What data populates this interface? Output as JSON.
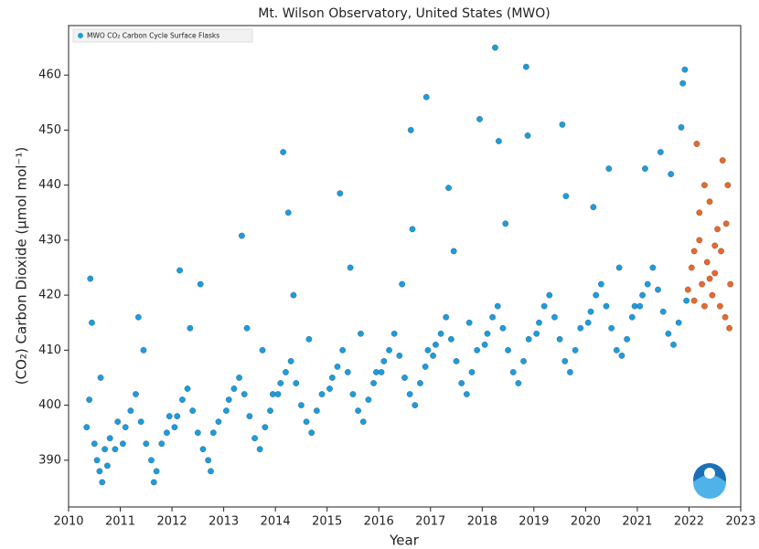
{
  "chart_data": {
    "type": "scatter",
    "title": "Mt. Wilson Observatory, United States (MWO)",
    "x_label": "Year",
    "y_label": "(CO₂) Carbon Dioxide (μmol mol⁻¹)",
    "xlim": [
      2010,
      2023
    ],
    "ylim": [
      381.5,
      469
    ],
    "xticks": [
      2010,
      2011,
      2012,
      2013,
      2014,
      2015,
      2016,
      2017,
      2018,
      2019,
      2020,
      2021,
      2022,
      2023
    ],
    "yticks": [
      390,
      400,
      410,
      420,
      430,
      440,
      450,
      460
    ],
    "legend": "upper left",
    "series": [
      {
        "name": "MWO CO₂ Carbon Cycle Surface Flasks",
        "color": "#1a9de0",
        "x": [
          2010.35,
          2010.4,
          2010.42,
          2010.45,
          2010.5,
          2010.55,
          2010.6,
          2010.65,
          2010.7,
          2010.75,
          2010.8,
          2010.9,
          2010.95,
          2010.62,
          2011.05,
          2011.1,
          2011.2,
          2011.3,
          2011.35,
          2011.4,
          2011.5,
          2011.6,
          2011.65,
          2011.7,
          2011.8,
          2011.9,
          2011.95,
          2011.45,
          2012.05,
          2012.1,
          2012.15,
          2012.2,
          2012.3,
          2012.35,
          2012.4,
          2012.5,
          2012.6,
          2012.7,
          2012.75,
          2012.8,
          2012.9,
          2012.55,
          2013.05,
          2013.1,
          2013.2,
          2013.3,
          2013.35,
          2013.4,
          2013.5,
          2013.6,
          2013.7,
          2013.8,
          2013.9,
          2013.95,
          2013.45,
          2013.75,
          2014.05,
          2014.1,
          2014.15,
          2014.2,
          2014.25,
          2014.3,
          2014.4,
          2014.5,
          2014.6,
          2014.7,
          2014.8,
          2014.9,
          2014.35,
          2014.65,
          2015.05,
          2015.1,
          2015.2,
          2015.25,
          2015.3,
          2015.4,
          2015.5,
          2015.6,
          2015.7,
          2015.8,
          2015.9,
          2015.45,
          2015.65,
          2015.95,
          2016.05,
          2016.1,
          2016.2,
          2016.3,
          2016.4,
          2016.5,
          2016.6,
          2016.62,
          2016.65,
          2016.7,
          2016.8,
          2016.9,
          2016.45,
          2016.95,
          2017.05,
          2017.1,
          2017.2,
          2017.3,
          2017.35,
          2017.4,
          2017.5,
          2017.6,
          2017.7,
          2017.8,
          2017.9,
          2016.92,
          2017.45,
          2017.75,
          2018.05,
          2018.1,
          2018.2,
          2018.25,
          2018.3,
          2018.32,
          2018.4,
          2018.5,
          2018.6,
          2018.7,
          2018.8,
          2017.95,
          2018.45,
          2018.9,
          2019.05,
          2019.1,
          2019.2,
          2019.3,
          2019.4,
          2019.5,
          2019.55,
          2019.6,
          2019.7,
          2019.8,
          2019.9,
          2018.85,
          2018.88,
          2019.62,
          2020.05,
          2020.1,
          2020.2,
          2020.3,
          2020.4,
          2020.45,
          2020.5,
          2020.6,
          2020.7,
          2020.8,
          2020.9,
          2020.15,
          2020.65,
          2020.95,
          2021.05,
          2021.1,
          2021.15,
          2021.2,
          2021.3,
          2021.4,
          2021.45,
          2021.5,
          2021.6,
          2021.7,
          2021.8,
          2021.85,
          2021.88,
          2021.92,
          2021.95,
          2021.65
        ],
        "values": [
          396,
          401,
          423,
          415,
          393,
          390,
          388,
          386,
          392,
          389,
          394,
          392,
          397,
          405,
          393,
          396,
          399,
          402,
          416,
          397,
          393,
          390,
          386,
          388,
          393,
          395,
          398,
          410,
          396,
          398,
          424.5,
          401,
          403,
          414,
          399,
          395,
          392,
          390,
          388,
          395,
          397,
          422,
          399,
          401,
          403,
          405,
          430.8,
          402,
          398,
          394,
          392,
          396,
          399,
          402,
          414,
          410,
          402,
          404,
          446,
          406,
          435,
          408,
          404,
          400,
          397,
          395,
          399,
          402,
          420,
          412,
          403,
          405,
          407,
          438.5,
          410,
          406,
          402,
          399,
          397,
          401,
          404,
          425,
          413,
          406,
          406,
          408,
          410,
          413,
          409,
          405,
          402,
          450,
          432,
          400,
          404,
          407,
          422,
          410,
          409,
          411,
          413,
          416,
          439.5,
          412,
          408,
          404,
          402,
          406,
          410,
          456,
          428,
          415,
          411,
          413,
          416,
          465,
          418,
          448,
          414,
          410,
          406,
          404,
          408,
          452,
          433,
          412,
          413,
          415,
          418,
          420,
          416,
          412,
          451,
          408,
          406,
          410,
          414,
          461.5,
          449,
          438,
          415,
          417,
          420,
          422,
          418,
          443,
          414,
          410,
          409,
          412,
          416,
          436,
          425,
          418,
          418,
          420,
          443,
          422,
          425,
          421,
          446,
          417,
          413,
          411,
          415,
          450.5,
          458.5,
          461,
          419,
          442
        ]
      },
      {
        "color": "#e8692c",
        "x": [
          2021.98,
          2022.05,
          2022.1,
          2022.15,
          2022.2,
          2022.25,
          2022.3,
          2022.35,
          2022.4,
          2022.45,
          2022.5,
          2022.55,
          2022.6,
          2022.62,
          2022.65,
          2022.7,
          2022.72,
          2022.75,
          2022.78,
          2022.8,
          2022.1,
          2022.3,
          2022.5,
          2022.4,
          2022.2
        ],
        "values": [
          421,
          425,
          428,
          447.5,
          430,
          422,
          440,
          426,
          437,
          420,
          424,
          432,
          418,
          428,
          444.5,
          416,
          433,
          440,
          414,
          422,
          419,
          418,
          429,
          423,
          435
        ]
      }
    ]
  }
}
